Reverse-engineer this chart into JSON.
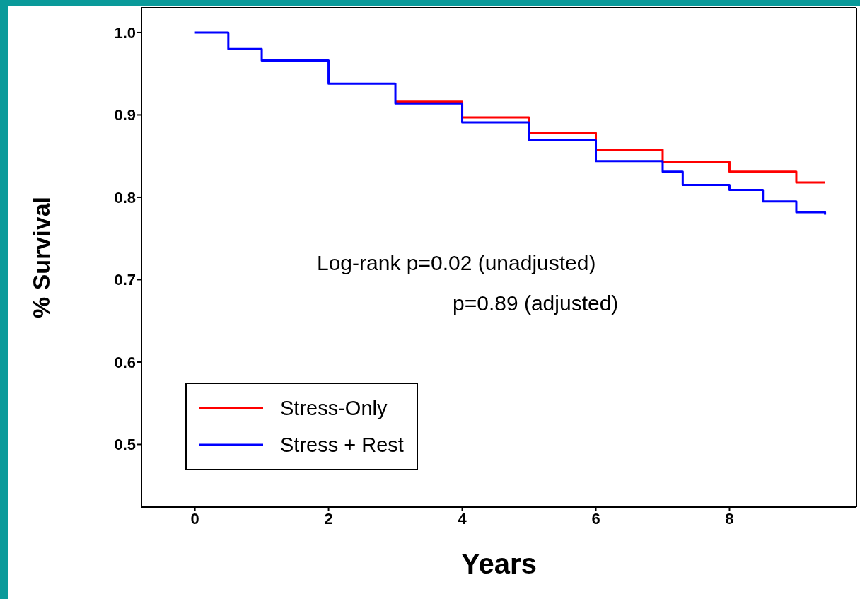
{
  "chart_data": {
    "type": "step",
    "xlabel": "Years",
    "ylabel": "% Survival",
    "xlim": [
      -0.8,
      9.9
    ],
    "xticks": [
      0,
      2,
      4,
      6,
      8
    ],
    "ylim": [
      0.424,
      1.03
    ],
    "yticks": [
      0.5,
      0.6,
      0.7,
      0.8,
      0.9,
      {
        "value": 1,
        "label": "1.0"
      }
    ],
    "annotations": [
      "Log-rank p=0.02 (unadjusted)",
      "p=0.89 (adjusted)"
    ],
    "legend": "bottom left",
    "grid": false,
    "marker": "none",
    "line_style": "solid",
    "series": [
      {
        "name": "Stress-Only",
        "color": "#ff0000",
        "x": [
          3,
          4,
          5,
          6,
          7,
          8,
          9,
          9.43
        ],
        "values": [
          0.916,
          0.897,
          0.878,
          0.858,
          0.843,
          0.831,
          0.818,
          0.818
        ]
      },
      {
        "name": "Stress + Rest",
        "color": "#0000ff",
        "x": [
          0,
          0.5,
          1,
          2,
          3,
          4,
          5,
          6,
          7,
          7.3,
          8,
          8.5,
          9,
          9.43
        ],
        "values": [
          1.0,
          0.98,
          0.966,
          0.938,
          0.914,
          0.891,
          0.869,
          0.844,
          0.831,
          0.815,
          0.809,
          0.795,
          0.782,
          0.779
        ]
      }
    ]
  }
}
